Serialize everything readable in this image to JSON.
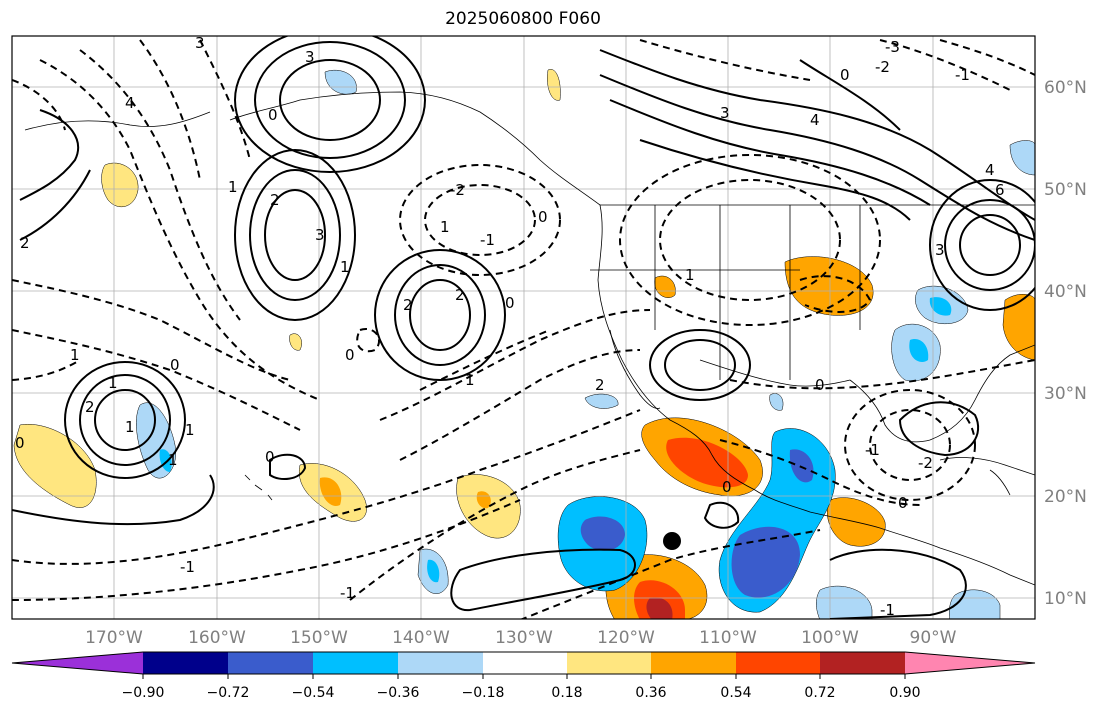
{
  "title": "2025060800 F060",
  "latitude_labels": [
    "60°N",
    "50°N",
    "40°N",
    "30°N",
    "20°N",
    "10°N"
  ],
  "longitude_labels": [
    "170°W",
    "160°W",
    "150°W",
    "140°W",
    "130°W",
    "120°W",
    "110°W",
    "100°W",
    "90°W"
  ],
  "colorbar": {
    "tick_labels": [
      "−0.90",
      "−0.72",
      "−0.54",
      "−0.36",
      "−0.18",
      "0.18",
      "0.36",
      "0.54",
      "0.72",
      "0.90"
    ],
    "colors": [
      "#9b30d9",
      "#00008b",
      "#3a5ccc",
      "#00bfff",
      "#add8f7",
      "#ffffff",
      "#ffe680",
      "#ffa500",
      "#ff4500",
      "#b22222",
      "#ff85b0"
    ]
  },
  "contour_labels": [
    "3",
    "3",
    "4",
    "0",
    "2",
    "1",
    "3",
    "2",
    "1",
    "2",
    "0",
    "1",
    "1",
    "0",
    "2",
    "1",
    "1",
    "0",
    "1",
    "-1",
    "0",
    "1",
    "-2",
    "-1",
    "0",
    "0",
    "1",
    "3",
    "4",
    "-3",
    "-2",
    "0",
    "-1",
    "4",
    "6",
    "3",
    "1",
    "0",
    "-1",
    "-2",
    "0",
    "0",
    "-1",
    "2",
    "2",
    "-1"
  ],
  "marker": "storm-center-dot"
}
